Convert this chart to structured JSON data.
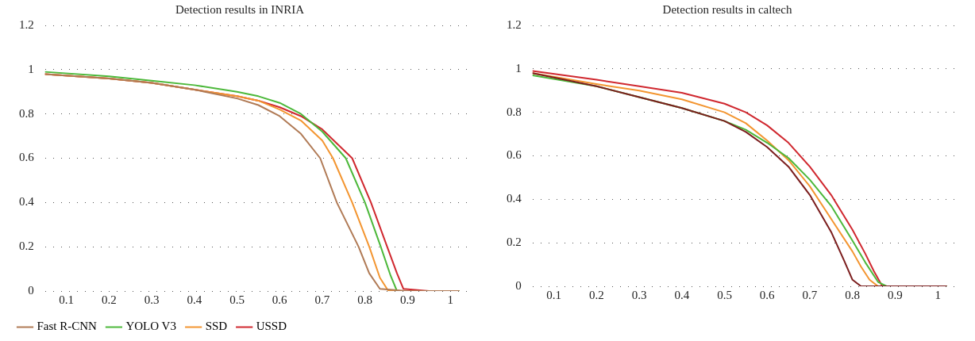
{
  "chart_data": [
    {
      "type": "line",
      "title": "Detection results in INRIA",
      "xlim": [
        0.05,
        1.05
      ],
      "xticks": [
        0.1,
        0.2,
        0.3,
        0.4,
        0.5,
        0.6,
        0.7,
        0.8,
        0.9,
        1
      ],
      "ylim": [
        0,
        1.2
      ],
      "yticks": [
        0,
        0.2,
        0.4,
        0.6,
        0.8,
        1,
        1.2
      ],
      "grid": "y",
      "legend": "bottom",
      "marker": "none",
      "line_style": "solid",
      "series": [
        {
          "name": "Fast R-CNN",
          "color": "#b07a55",
          "x": [
            0.05,
            0.2,
            0.3,
            0.4,
            0.5,
            0.55,
            0.6,
            0.65,
            0.695,
            0.734,
            0.785,
            0.81,
            0.835,
            0.9,
            1.02
          ],
          "values": [
            0.98,
            0.96,
            0.94,
            0.91,
            0.87,
            0.84,
            0.79,
            0.71,
            0.6,
            0.4,
            0.2,
            0.08,
            0.01,
            0,
            0
          ]
        },
        {
          "name": "YOLO V3",
          "color": "#4cb83a",
          "x": [
            0.05,
            0.2,
            0.3,
            0.4,
            0.5,
            0.55,
            0.6,
            0.65,
            0.7,
            0.755,
            0.8,
            0.837,
            0.86,
            0.875,
            0.95,
            1.02
          ],
          "values": [
            0.99,
            0.97,
            0.95,
            0.93,
            0.9,
            0.88,
            0.85,
            0.8,
            0.72,
            0.6,
            0.4,
            0.2,
            0.07,
            0,
            0,
            0
          ]
        },
        {
          "name": "SSD",
          "color": "#f39530",
          "x": [
            0.05,
            0.2,
            0.3,
            0.4,
            0.5,
            0.55,
            0.6,
            0.65,
            0.7,
            0.725,
            0.77,
            0.81,
            0.835,
            0.855,
            0.9,
            1.02
          ],
          "values": [
            0.98,
            0.96,
            0.94,
            0.91,
            0.88,
            0.86,
            0.82,
            0.77,
            0.68,
            0.6,
            0.4,
            0.2,
            0.06,
            0,
            0,
            0
          ]
        },
        {
          "name": "USSD",
          "color": "#d0282f",
          "x": [
            0.05,
            0.2,
            0.3,
            0.4,
            0.5,
            0.55,
            0.6,
            0.65,
            0.7,
            0.77,
            0.814,
            0.852,
            0.875,
            0.89,
            0.95,
            1.02
          ],
          "values": [
            0.98,
            0.96,
            0.94,
            0.91,
            0.88,
            0.86,
            0.83,
            0.79,
            0.73,
            0.6,
            0.4,
            0.2,
            0.08,
            0.01,
            0,
            0
          ]
        }
      ]
    },
    {
      "type": "line",
      "title": "Detection results in caltech",
      "xlim": [
        0.05,
        1.05
      ],
      "xticks": [
        0.1,
        0.2,
        0.3,
        0.4,
        0.5,
        0.6,
        0.7,
        0.8,
        0.9,
        1
      ],
      "ylim": [
        0,
        1.2
      ],
      "yticks": [
        0,
        0.2,
        0.4,
        0.6,
        0.8,
        1,
        1.2
      ],
      "grid": "y",
      "legend": false,
      "marker": "none",
      "line_style": "solid",
      "series": [
        {
          "color": "#7b1d1d",
          "x": [
            0.05,
            0.2,
            0.3,
            0.4,
            0.5,
            0.55,
            0.6,
            0.65,
            0.7,
            0.75,
            0.78,
            0.8,
            0.82,
            0.9,
            1.02
          ],
          "values": [
            0.98,
            0.92,
            0.87,
            0.82,
            0.76,
            0.71,
            0.64,
            0.55,
            0.42,
            0.25,
            0.12,
            0.03,
            0,
            0,
            0
          ]
        },
        {
          "color": "#4cb83a",
          "x": [
            0.05,
            0.2,
            0.3,
            0.4,
            0.5,
            0.55,
            0.6,
            0.65,
            0.7,
            0.75,
            0.8,
            0.83,
            0.86,
            0.88,
            1.02
          ],
          "values": [
            0.97,
            0.92,
            0.87,
            0.82,
            0.76,
            0.72,
            0.66,
            0.59,
            0.49,
            0.37,
            0.21,
            0.11,
            0.02,
            0,
            0
          ]
        },
        {
          "color": "#f39530",
          "x": [
            0.05,
            0.2,
            0.3,
            0.4,
            0.5,
            0.55,
            0.6,
            0.65,
            0.7,
            0.75,
            0.8,
            0.82,
            0.84,
            0.86,
            1.02
          ],
          "values": [
            0.98,
            0.93,
            0.9,
            0.86,
            0.8,
            0.75,
            0.67,
            0.58,
            0.46,
            0.31,
            0.16,
            0.09,
            0.03,
            0,
            0
          ]
        },
        {
          "color": "#d0282f",
          "x": [
            0.05,
            0.2,
            0.3,
            0.4,
            0.5,
            0.55,
            0.6,
            0.65,
            0.7,
            0.75,
            0.8,
            0.83,
            0.85,
            0.87,
            1.02
          ],
          "values": [
            0.99,
            0.95,
            0.92,
            0.89,
            0.84,
            0.8,
            0.74,
            0.66,
            0.55,
            0.42,
            0.26,
            0.15,
            0.07,
            0,
            0
          ]
        }
      ]
    }
  ]
}
